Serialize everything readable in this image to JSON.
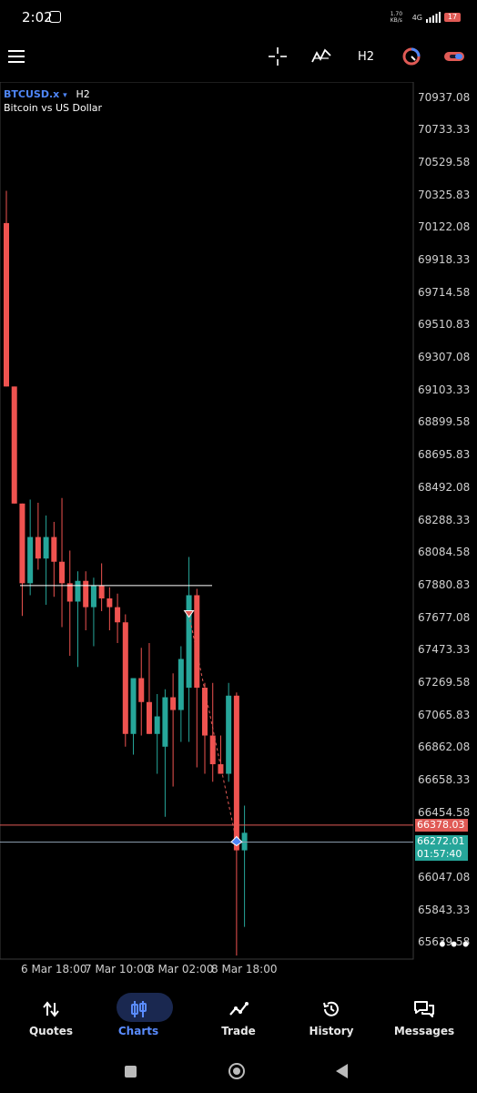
{
  "status_bar": {
    "time": "2:02",
    "network_speed": "1.70 KB/s",
    "network_type": "4G",
    "battery": "17"
  },
  "toolbar": {
    "menu_icon": "hamburger-icon",
    "crosshair_icon": "crosshair-icon",
    "indicators_icon": "indicators-icon",
    "timeframe": "H2",
    "trade_icon": "trade-circle-icon",
    "account_icon": "link-icon"
  },
  "chart_header": {
    "symbol": "BTCUSD.x",
    "dropdown_glyph": "▾",
    "timeframe": "H2",
    "description": "Bitcoin vs US Dollar"
  },
  "price_axis": [
    "70937.08",
    "70733.33",
    "70529.58",
    "70325.83",
    "70122.08",
    "69918.33",
    "69714.58",
    "69510.83",
    "69307.08",
    "69103.33",
    "68899.58",
    "68695.83",
    "68492.08",
    "68288.33",
    "68084.58",
    "67880.83",
    "67677.08",
    "67473.33",
    "67269.58",
    "67065.83",
    "66862.08",
    "66658.33",
    "66454.58",
    "66047.08",
    "65843.33",
    "65639.58"
  ],
  "price_axis_values": [
    70937.08,
    70733.33,
    70529.58,
    70325.83,
    70122.08,
    69918.33,
    69714.58,
    69510.83,
    69307.08,
    69103.33,
    68899.58,
    68695.83,
    68492.08,
    68288.33,
    68084.58,
    67880.83,
    67677.08,
    67473.33,
    67269.58,
    67065.83,
    66862.08,
    66658.33,
    66454.58,
    66047.08,
    65843.33,
    65639.58
  ],
  "time_axis": [
    "6 Mar 18:00",
    "7 Mar 10:00",
    "8 Mar 02:00",
    "8 Mar 18:00"
  ],
  "bid_tag": {
    "price": "66378.03",
    "value": 66378.03,
    "color": "#e05a55"
  },
  "ask_tag": {
    "price": "66272.01",
    "countdown": "01:57:40",
    "value": 66272.01,
    "color": "#26a69a"
  },
  "horizontal_level": 67880.83,
  "more_menu": "•••",
  "chart_data": {
    "type": "candlestick",
    "symbol": "BTCUSD.x",
    "timeframe": "H2",
    "bull_color": "#26a69a",
    "bear_color": "#ef5350",
    "ylim": [
      65537.71,
      71038.95
    ],
    "candles": [
      {
        "o": 70154,
        "h": 70356,
        "l": 69129,
        "c": 69129
      },
      {
        "o": 69129,
        "h": 69129,
        "l": 68395,
        "c": 68395
      },
      {
        "o": 68395,
        "h": 68395,
        "l": 67690,
        "c": 67895
      },
      {
        "o": 67895,
        "h": 68420,
        "l": 67820,
        "c": 68185
      },
      {
        "o": 68185,
        "h": 68400,
        "l": 67980,
        "c": 68050
      },
      {
        "o": 68050,
        "h": 68320,
        "l": 67760,
        "c": 68185
      },
      {
        "o": 68185,
        "h": 68280,
        "l": 67810,
        "c": 68030
      },
      {
        "o": 68030,
        "h": 68430,
        "l": 67620,
        "c": 67895
      },
      {
        "o": 67895,
        "h": 68100,
        "l": 67440,
        "c": 67780
      },
      {
        "o": 67780,
        "h": 67970,
        "l": 67370,
        "c": 67910
      },
      {
        "o": 67910,
        "h": 67970,
        "l": 67600,
        "c": 67745
      },
      {
        "o": 67745,
        "h": 67930,
        "l": 67500,
        "c": 67880
      },
      {
        "o": 67880,
        "h": 68020,
        "l": 67720,
        "c": 67800
      },
      {
        "o": 67800,
        "h": 67870,
        "l": 67600,
        "c": 67745
      },
      {
        "o": 67745,
        "h": 67830,
        "l": 67520,
        "c": 67650
      },
      {
        "o": 67650,
        "h": 67700,
        "l": 66870,
        "c": 66950
      },
      {
        "o": 66950,
        "h": 67300,
        "l": 66820,
        "c": 67300
      },
      {
        "o": 67300,
        "h": 67490,
        "l": 66940,
        "c": 67150
      },
      {
        "o": 67150,
        "h": 67520,
        "l": 66950,
        "c": 66950
      },
      {
        "o": 66950,
        "h": 67200,
        "l": 66700,
        "c": 67060
      },
      {
        "o": 66870,
        "h": 67230,
        "l": 66430,
        "c": 67180
      },
      {
        "o": 67180,
        "h": 67330,
        "l": 66620,
        "c": 67100
      },
      {
        "o": 67100,
        "h": 67500,
        "l": 66900,
        "c": 67420
      },
      {
        "o": 67240,
        "h": 68060,
        "l": 66900,
        "c": 67820
      },
      {
        "o": 67820,
        "h": 67860,
        "l": 66740,
        "c": 67240
      },
      {
        "o": 67240,
        "h": 67270,
        "l": 66700,
        "c": 66940
      },
      {
        "o": 66940,
        "h": 67270,
        "l": 66650,
        "c": 66760
      },
      {
        "o": 66760,
        "h": 66940,
        "l": 66700,
        "c": 66700
      },
      {
        "o": 66700,
        "h": 67270,
        "l": 66650,
        "c": 67190
      },
      {
        "o": 67190,
        "h": 67210,
        "l": 65560,
        "c": 66220
      },
      {
        "o": 66220,
        "h": 66500,
        "l": 65740,
        "c": 66330
      }
    ]
  },
  "bottom_nav": [
    {
      "label": "Quotes",
      "icon": "quotes-arrows-icon",
      "active": false
    },
    {
      "label": "Charts",
      "icon": "candles-icon",
      "active": true
    },
    {
      "label": "Trade",
      "icon": "trade-line-icon",
      "active": false
    },
    {
      "label": "History",
      "icon": "history-clock-icon",
      "active": false
    },
    {
      "label": "Messages",
      "icon": "messages-icon",
      "active": false
    }
  ],
  "colors": {
    "accent": "#4f86f7",
    "background": "#000000",
    "grid_line": "#3a3a3a"
  }
}
